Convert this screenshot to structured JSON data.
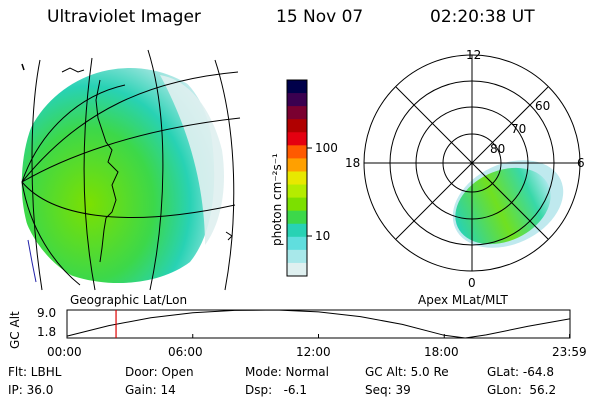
{
  "header": {
    "instrument": "Ultraviolet Imager",
    "date": "15 Nov 07",
    "time": "02:20:38 UT"
  },
  "left_panel": {
    "label": "Geographic Lat/Lon"
  },
  "right_panel": {
    "label": "Apex MLat/MLT",
    "mlt_labels": [
      "12",
      "18",
      "6",
      "0"
    ],
    "lat_labels": [
      "60",
      "70",
      "80"
    ]
  },
  "colorbar": {
    "unit_label": "photon cm⁻²s⁻¹",
    "ticks": [
      "100",
      "10"
    ],
    "colors": [
      "#00004a",
      "#3a0050",
      "#7a0030",
      "#b00000",
      "#e40010",
      "#ff5a00",
      "#ffa000",
      "#e8e800",
      "#b4ec00",
      "#7ce000",
      "#3cd84a",
      "#28d2b4",
      "#60dede",
      "#a8e8ea",
      "#dff0f0"
    ]
  },
  "altitude_plot": {
    "ylabel": "GC Alt",
    "ymax_label": "9.0",
    "ymin_label": "1.8",
    "ymin": 1.8,
    "ymax": 9.0,
    "x_ticks": [
      "00:00",
      "06:00",
      "12:00",
      "18:00",
      "23:59"
    ],
    "current_time_hours": 2.34,
    "marker_color": "#dd0000"
  },
  "status": {
    "row1": {
      "flt": "Flt: LBHL",
      "door": "Door: Open",
      "mode": "Mode: Normal",
      "gcalt": "GC Alt: 5.0 Re",
      "glat": "GLat: -64.8"
    },
    "row2": {
      "ip": "IP: 36.0",
      "gain": "Gain: 14",
      "dsp": "Dsp:   -6.1",
      "seq": "Seq: 39",
      "glon": "GLon:  56.2"
    }
  }
}
